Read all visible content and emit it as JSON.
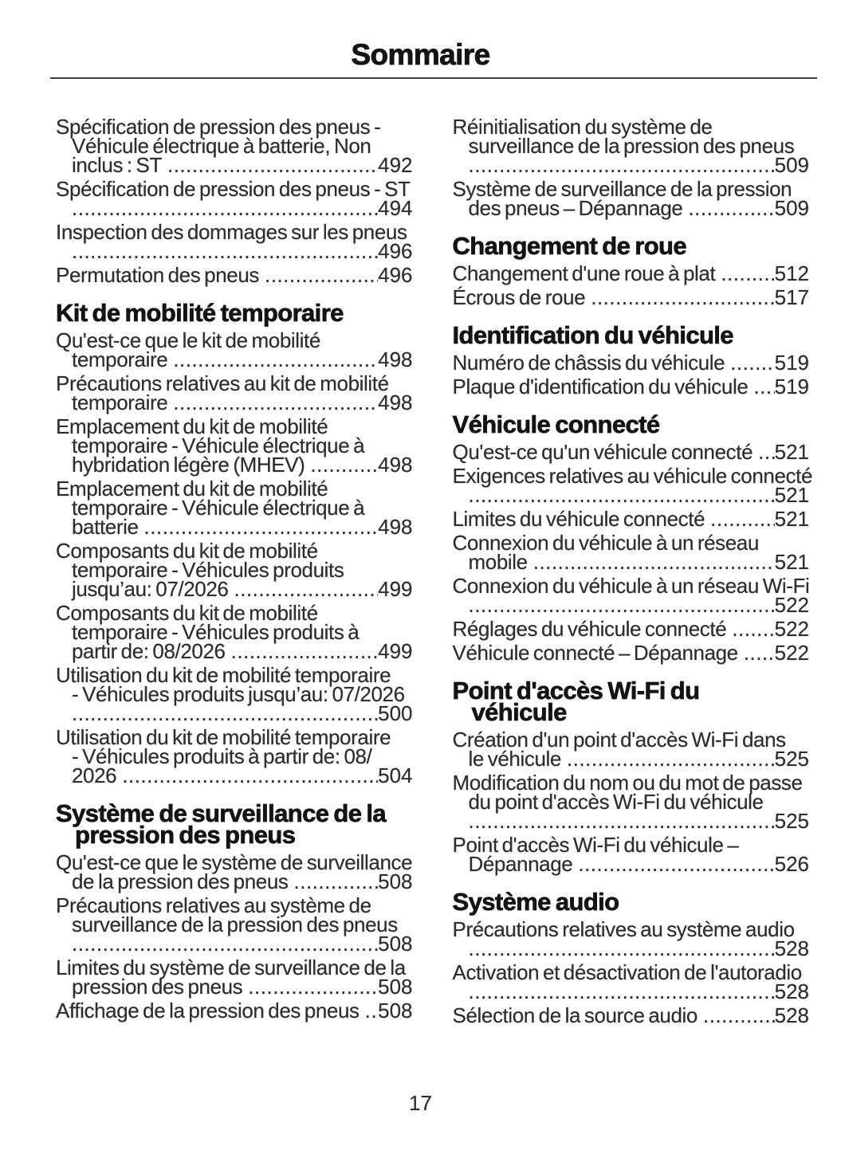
{
  "header": {
    "title": "Sommaire"
  },
  "footer": {
    "page_number": "17"
  },
  "colors": {
    "body_text": "#2e2e2e",
    "heading_text": "#141414",
    "divider_rule": "#3c3c3c",
    "background": "#ffffff"
  },
  "toc": {
    "columns": [
      {
        "side": "left",
        "items": [
          {
            "type": "entry",
            "lines": [
              "Spécification de pression des pneus -",
              "Véhicule électrique à batterie, Non",
              "inclus : ST"
            ],
            "page": "492"
          },
          {
            "type": "entry",
            "lines": [
              "Spécification de pression des pneus - ST",
              ""
            ],
            "page": "494"
          },
          {
            "type": "entry",
            "lines": [
              "Inspection des dommages sur les pneus",
              ""
            ],
            "page": "496"
          },
          {
            "type": "entry",
            "lines": [
              "Permutation des pneus"
            ],
            "page": "496"
          },
          {
            "type": "heading",
            "lines": [
              "Kit de mobilité temporaire"
            ]
          },
          {
            "type": "entry",
            "lines": [
              "Qu'est-ce que le kit de mobilité",
              "temporaire"
            ],
            "page": "498"
          },
          {
            "type": "entry",
            "lines": [
              "Précautions relatives au kit de mobilité",
              "temporaire"
            ],
            "page": "498"
          },
          {
            "type": "entry",
            "lines": [
              "Emplacement du kit de mobilité",
              "temporaire - Véhicule électrique à",
              "hybridation légère (MHEV)"
            ],
            "page": "498"
          },
          {
            "type": "entry",
            "lines": [
              "Emplacement du kit de mobilité",
              "temporaire - Véhicule électrique à",
              "batterie"
            ],
            "page": "498"
          },
          {
            "type": "entry",
            "lines": [
              "Composants du kit de mobilité",
              "temporaire - Véhicules produits",
              "jusqu’au: 07/2026"
            ],
            "page": "499"
          },
          {
            "type": "entry",
            "lines": [
              "Composants du kit de mobilité",
              "temporaire - Véhicules produits à",
              "partir de: 08/2026"
            ],
            "page": "499"
          },
          {
            "type": "entry",
            "lines": [
              "Utilisation du kit de mobilité temporaire",
              "- Véhicules produits jusqu’au: 07/2026",
              ""
            ],
            "page": "500"
          },
          {
            "type": "entry",
            "lines": [
              "Utilisation du kit de mobilité temporaire",
              "- Véhicules produits à partir de: 08/",
              "2026"
            ],
            "page": "504"
          },
          {
            "type": "heading",
            "lines": [
              "Système de surveillance de la",
              "pression des pneus"
            ]
          },
          {
            "type": "entry",
            "lines": [
              "Qu'est-ce que le système de surveillance",
              "de la pression des pneus"
            ],
            "page": "508"
          },
          {
            "type": "entry",
            "lines": [
              "Précautions relatives au système de",
              "surveillance de la pression des pneus",
              ""
            ],
            "page": "508"
          },
          {
            "type": "entry",
            "lines": [
              "Limites du système de surveillance de la",
              "pression des pneus"
            ],
            "page": "508"
          },
          {
            "type": "entry",
            "lines": [
              "Affichage de la pression des pneus"
            ],
            "page": "508"
          }
        ]
      },
      {
        "side": "right",
        "items": [
          {
            "type": "entry",
            "lines": [
              "Réinitialisation du système de",
              "surveillance de la pression des pneus",
              ""
            ],
            "page": "509"
          },
          {
            "type": "entry",
            "lines": [
              "Système de surveillance de la pression",
              "des pneus – Dépannage"
            ],
            "page": "509"
          },
          {
            "type": "heading",
            "lines": [
              "Changement de roue"
            ]
          },
          {
            "type": "entry",
            "lines": [
              "Changement d'une roue à plat"
            ],
            "page": "512"
          },
          {
            "type": "entry",
            "lines": [
              "Écrous de roue"
            ],
            "page": "517"
          },
          {
            "type": "heading",
            "lines": [
              "Identification du véhicule"
            ]
          },
          {
            "type": "entry",
            "lines": [
              "Numéro de châssis du véhicule"
            ],
            "page": "519"
          },
          {
            "type": "entry",
            "lines": [
              "Plaque d'identification du véhicule"
            ],
            "page": "519"
          },
          {
            "type": "heading",
            "lines": [
              "Véhicule connecté"
            ]
          },
          {
            "type": "entry",
            "lines": [
              "Qu'est-ce qu'un véhicule connecté"
            ],
            "page": "521"
          },
          {
            "type": "entry",
            "lines": [
              "Exigences relatives au véhicule connecté",
              ""
            ],
            "page": "521"
          },
          {
            "type": "entry",
            "lines": [
              "Limites du véhicule connecté"
            ],
            "page": "521"
          },
          {
            "type": "entry",
            "lines": [
              "Connexion du véhicule à un réseau",
              "mobile"
            ],
            "page": "521"
          },
          {
            "type": "entry",
            "lines": [
              "Connexion du véhicule à un réseau Wi-Fi",
              ""
            ],
            "page": "522"
          },
          {
            "type": "entry",
            "lines": [
              "Réglages du véhicule connecté"
            ],
            "page": "522"
          },
          {
            "type": "entry",
            "lines": [
              "Véhicule connecté – Dépannage"
            ],
            "page": "522"
          },
          {
            "type": "heading",
            "lines": [
              "Point d'accès Wi-Fi du",
              "véhicule"
            ]
          },
          {
            "type": "entry",
            "lines": [
              "Création d'un point d'accès Wi-Fi dans",
              "le véhicule"
            ],
            "page": "525"
          },
          {
            "type": "entry",
            "lines": [
              "Modification du nom ou du mot de passe",
              "du point d'accès Wi-Fi du véhicule",
              ""
            ],
            "page": "525"
          },
          {
            "type": "entry",
            "lines": [
              "Point d'accès Wi-Fi du véhicule –",
              "Dépannage"
            ],
            "page": "526"
          },
          {
            "type": "heading",
            "lines": [
              "Système audio"
            ]
          },
          {
            "type": "entry",
            "lines": [
              "Précautions relatives au système audio",
              ""
            ],
            "page": "528"
          },
          {
            "type": "entry",
            "lines": [
              "Activation et désactivation de l'autoradio",
              ""
            ],
            "page": "528"
          },
          {
            "type": "entry",
            "lines": [
              "Sélection de la source audio"
            ],
            "page": "528"
          }
        ]
      }
    ]
  }
}
